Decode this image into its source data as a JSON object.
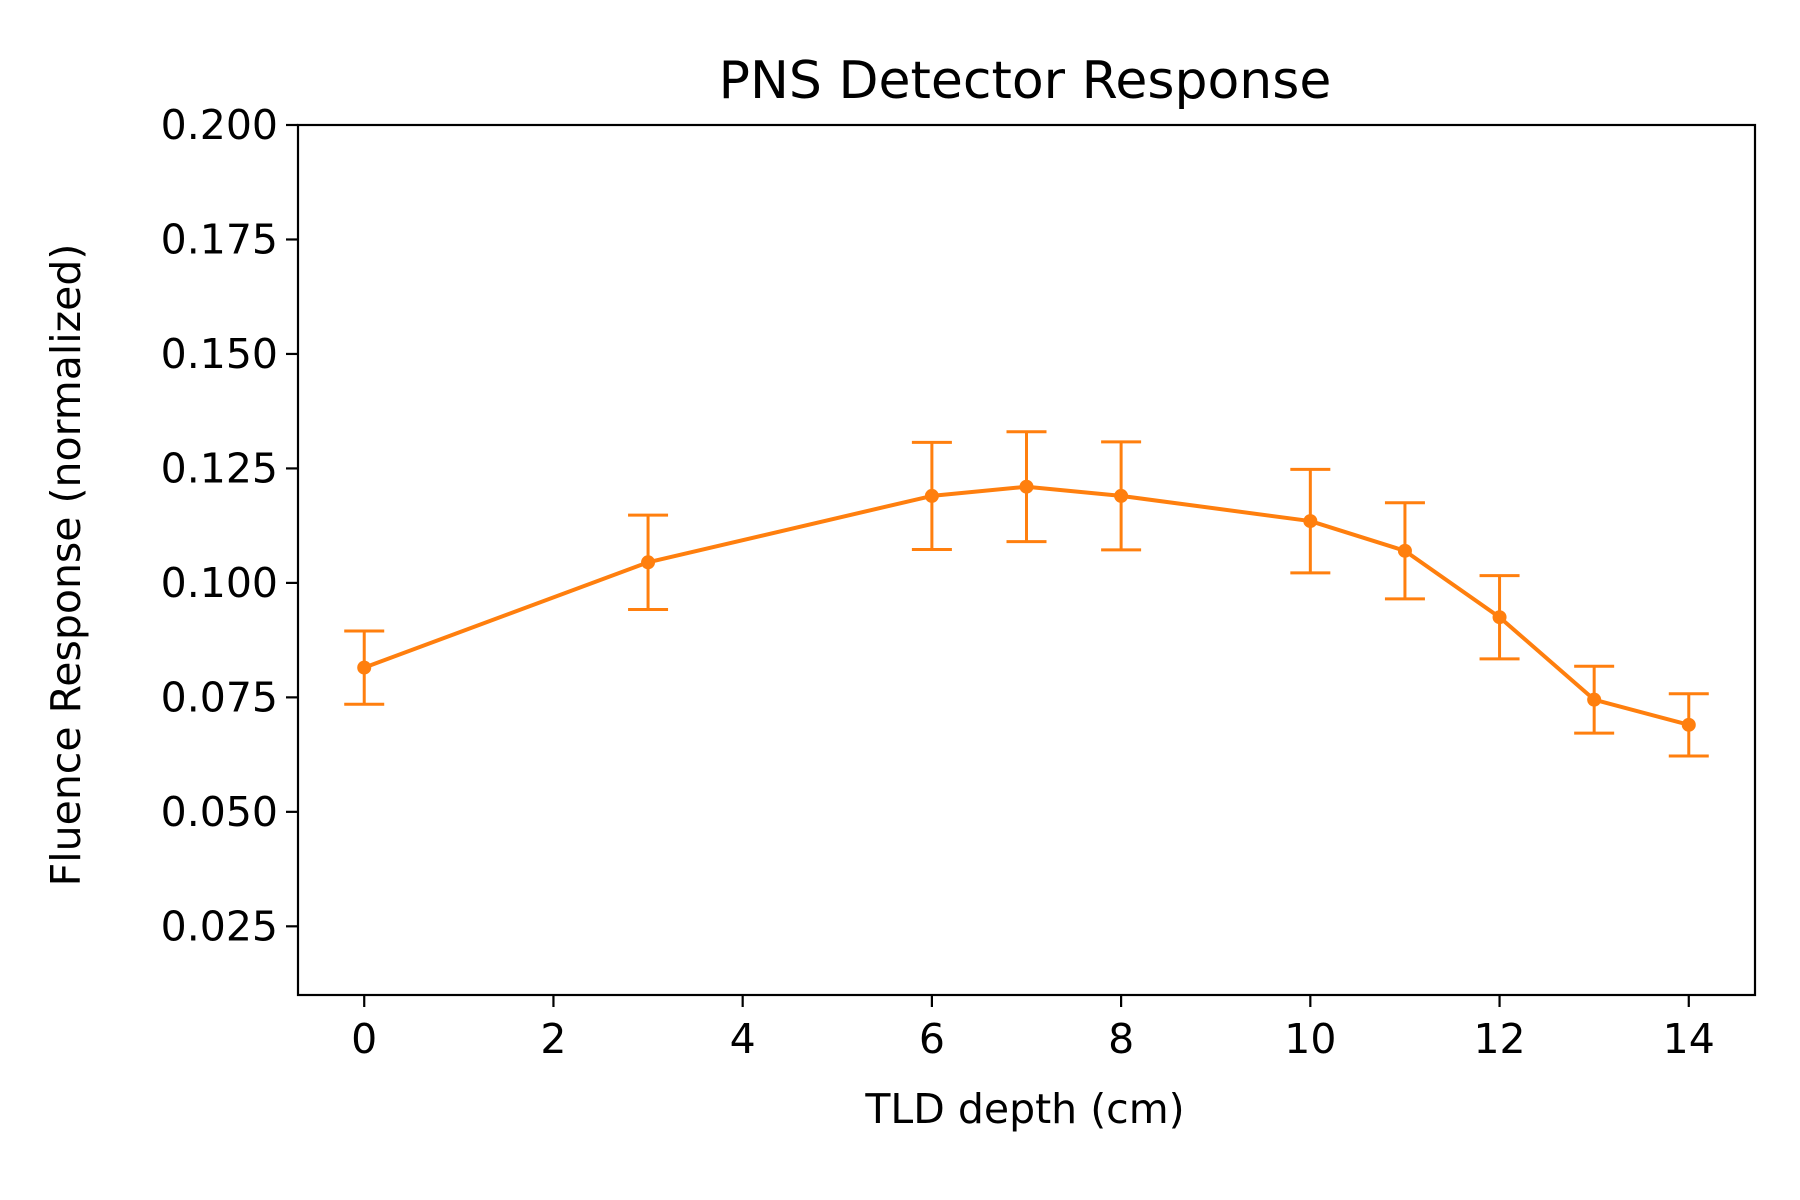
{
  "chart_data": {
    "type": "line",
    "title": "PNS Detector Response",
    "xlabel": "TLD depth (cm)",
    "ylabel": "Fluence Response (normalized)",
    "x": [
      0,
      3,
      6,
      7,
      8,
      10,
      11,
      12,
      13,
      14
    ],
    "series": [
      {
        "values": [
          0.0815,
          0.1045,
          0.119,
          0.121,
          0.119,
          0.1135,
          0.107,
          0.0925,
          0.0745,
          0.069
        ],
        "errors": [
          0.008,
          0.0103,
          0.0117,
          0.012,
          0.0118,
          0.0113,
          0.0105,
          0.0091,
          0.0073,
          0.0068
        ],
        "color": "#ff7f0e"
      }
    ],
    "xlim": [
      -0.7,
      14.7
    ],
    "ylim": [
      0.01,
      0.2
    ],
    "xticks": [
      0,
      2,
      4,
      6,
      8,
      10,
      12,
      14
    ],
    "xtick_labels": [
      "0",
      "2",
      "4",
      "6",
      "8",
      "10",
      "12",
      "14"
    ],
    "yticks": [
      0.025,
      0.05,
      0.075,
      0.1,
      0.125,
      0.15,
      0.175,
      0.2
    ],
    "ytick_labels": [
      "0.025",
      "0.050",
      "0.075",
      "0.100",
      "0.125",
      "0.150",
      "0.175",
      "0.200"
    ],
    "grid": false,
    "legend": "none"
  }
}
